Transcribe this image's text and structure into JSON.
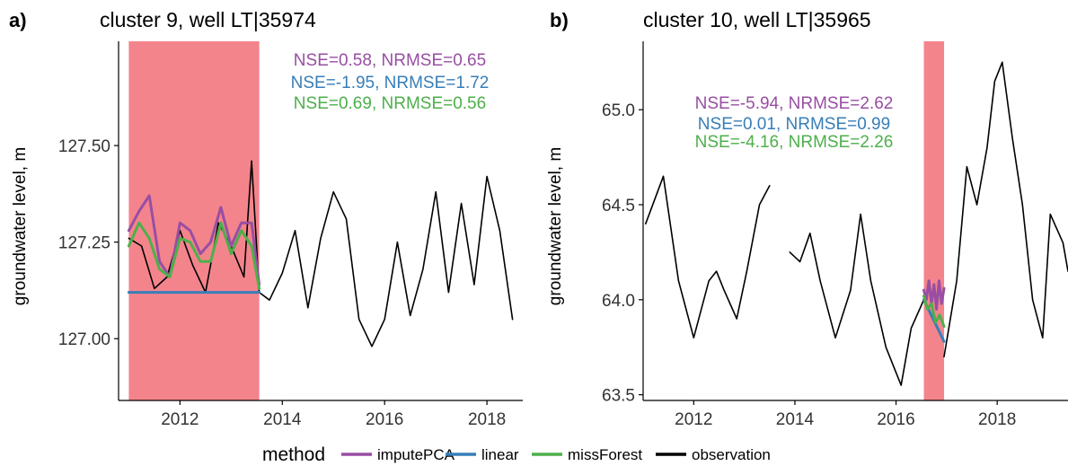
{
  "figure": {
    "legend": {
      "title": "method",
      "position": "bottom",
      "entries": [
        {
          "label": "imputePCA",
          "color": "#984ea3"
        },
        {
          "label": "linear",
          "color": "#377eb8"
        },
        {
          "label": "missForest",
          "color": "#4daf4a"
        },
        {
          "label": "observation",
          "color": "#000000"
        }
      ]
    },
    "colors": {
      "gap_fill": "#f4848c",
      "observation": "#000000"
    }
  },
  "chart_data": [
    {
      "panel_label": "a)",
      "type": "line",
      "title": "cluster 9, well LT|35974",
      "xlabel": "",
      "ylabel": "groundwater level, m",
      "xlim": [
        2010.8,
        2018.7
      ],
      "ylim": [
        126.84,
        127.77
      ],
      "x_ticks": [
        2012,
        2014,
        2016,
        2018
      ],
      "x_tick_labels": [
        "2012",
        "2014",
        "2016",
        "2018"
      ],
      "y_ticks": [
        127.0,
        127.25,
        127.5
      ],
      "y_tick_labels": [
        "127.00",
        "127.25",
        "127.50"
      ],
      "grid": false,
      "gap_period": [
        2011.0,
        2013.55
      ],
      "annotations": [
        {
          "text": "NSE=0.58, NRMSE=0.65",
          "series": "imputePCA",
          "color": "#984ea3"
        },
        {
          "text": "NSE=-1.95, NRMSE=1.72",
          "series": "linear",
          "color": "#377eb8"
        },
        {
          "text": "NSE=0.69, NRMSE=0.56",
          "series": "missForest",
          "color": "#4daf4a"
        }
      ],
      "series": [
        {
          "name": "observation",
          "color": "#000000",
          "x": [
            2011.0,
            2011.25,
            2011.5,
            2011.75,
            2012.0,
            2012.25,
            2012.5,
            2012.75,
            2013.0,
            2013.25,
            2013.4,
            2013.55,
            2013.75,
            2014.0,
            2014.25,
            2014.5,
            2014.75,
            2015.0,
            2015.25,
            2015.5,
            2015.75,
            2016.0,
            2016.25,
            2016.5,
            2016.75,
            2017.0,
            2017.25,
            2017.5,
            2017.75,
            2018.0,
            2018.25,
            2018.5
          ],
          "y": [
            127.26,
            127.24,
            127.13,
            127.16,
            127.28,
            127.19,
            127.12,
            127.3,
            127.24,
            127.16,
            127.46,
            127.12,
            127.1,
            127.17,
            127.28,
            127.08,
            127.26,
            127.38,
            127.31,
            127.05,
            126.98,
            127.05,
            127.25,
            127.06,
            127.18,
            127.38,
            127.12,
            127.35,
            127.14,
            127.42,
            127.28,
            127.05
          ]
        },
        {
          "name": "imputePCA",
          "color": "#984ea3",
          "x": [
            2011.0,
            2011.2,
            2011.4,
            2011.6,
            2011.8,
            2012.0,
            2012.2,
            2012.4,
            2012.6,
            2012.8,
            2013.0,
            2013.2,
            2013.4,
            2013.55
          ],
          "y": [
            127.28,
            127.33,
            127.37,
            127.2,
            127.16,
            127.3,
            127.28,
            127.22,
            127.25,
            127.34,
            127.24,
            127.3,
            127.3,
            127.14
          ]
        },
        {
          "name": "linear",
          "color": "#377eb8",
          "x": [
            2011.0,
            2013.55
          ],
          "y": [
            127.12,
            127.12
          ]
        },
        {
          "name": "missForest",
          "color": "#4daf4a",
          "x": [
            2011.0,
            2011.2,
            2011.4,
            2011.6,
            2011.8,
            2012.0,
            2012.2,
            2012.4,
            2012.6,
            2012.8,
            2013.0,
            2013.2,
            2013.4,
            2013.55
          ],
          "y": [
            127.24,
            127.3,
            127.26,
            127.18,
            127.16,
            127.26,
            127.25,
            127.2,
            127.2,
            127.3,
            127.22,
            127.28,
            127.24,
            127.13
          ]
        }
      ]
    },
    {
      "panel_label": "b)",
      "type": "line",
      "title": "cluster 10, well LT|35965",
      "xlabel": "",
      "ylabel": "groundwater level, m",
      "xlim": [
        2011.0,
        2019.4
      ],
      "ylim": [
        63.47,
        65.36
      ],
      "x_ticks": [
        2012,
        2014,
        2016,
        2018
      ],
      "x_tick_labels": [
        "2012",
        "2014",
        "2016",
        "2018"
      ],
      "y_ticks": [
        63.5,
        64.0,
        64.5,
        65.0
      ],
      "y_tick_labels": [
        "63.5",
        "64.0",
        "64.5",
        "65.0"
      ],
      "grid": false,
      "gap_period": [
        2016.55,
        2016.95
      ],
      "annotations": [
        {
          "text": "NSE=-5.94, NRMSE=2.62",
          "series": "imputePCA",
          "color": "#984ea3"
        },
        {
          "text": "NSE=0.01, NRMSE=0.99",
          "series": "linear",
          "color": "#377eb8"
        },
        {
          "text": "NSE=-4.16, NRMSE=2.26",
          "series": "missForest",
          "color": "#4daf4a"
        }
      ],
      "series": [
        {
          "name": "observation",
          "color": "#000000",
          "x": [
            2011.05,
            2011.4,
            2011.7,
            2012.0,
            2012.3,
            2012.45,
            2012.6,
            2012.85,
            2013.05,
            2013.3,
            2013.5,
            null,
            2013.9,
            2014.1,
            2014.3,
            2014.5,
            2014.8,
            2015.1,
            2015.3,
            2015.5,
            2015.8,
            2016.1,
            2016.3,
            2016.55,
            null,
            2016.95,
            2017.2,
            2017.4,
            2017.6,
            2017.8,
            2017.95,
            2018.1,
            2018.3,
            2018.5,
            2018.7,
            2018.9,
            2019.05,
            2019.3,
            2019.4
          ],
          "y": [
            64.4,
            64.65,
            64.1,
            63.8,
            64.1,
            64.15,
            64.05,
            63.9,
            64.15,
            64.5,
            64.6,
            null,
            64.25,
            64.2,
            64.35,
            64.1,
            63.8,
            64.05,
            64.45,
            64.1,
            63.75,
            63.55,
            63.85,
            64.0,
            null,
            63.7,
            64.1,
            64.7,
            64.5,
            64.8,
            65.15,
            65.25,
            64.85,
            64.5,
            64.0,
            63.8,
            64.45,
            64.3,
            64.15
          ]
        },
        {
          "name": "imputePCA",
          "color": "#984ea3",
          "x": [
            2016.55,
            2016.6,
            2016.65,
            2016.7,
            2016.75,
            2016.8,
            2016.85,
            2016.9,
            2016.95
          ],
          "y": [
            64.05,
            64.0,
            64.1,
            63.98,
            64.08,
            63.95,
            64.1,
            63.98,
            64.06
          ]
        },
        {
          "name": "linear",
          "color": "#377eb8",
          "x": [
            2016.55,
            2016.95
          ],
          "y": [
            64.0,
            63.78
          ]
        },
        {
          "name": "missForest",
          "color": "#4daf4a",
          "x": [
            2016.55,
            2016.62,
            2016.7,
            2016.78,
            2016.86,
            2016.95
          ],
          "y": [
            64.02,
            63.95,
            63.98,
            63.88,
            63.92,
            63.86
          ]
        }
      ]
    }
  ]
}
